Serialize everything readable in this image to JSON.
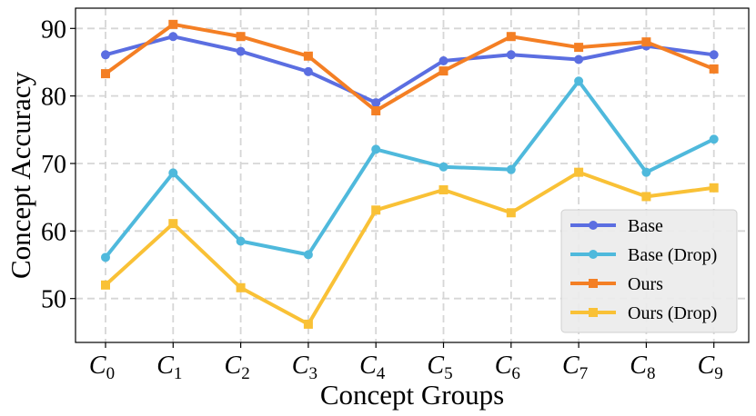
{
  "chart_data": {
    "type": "line",
    "title": "",
    "xlabel": "Concept Groups",
    "ylabel": "Concept Accuracy",
    "categories": [
      {
        "main": "C",
        "sub": "0"
      },
      {
        "main": "C",
        "sub": "1"
      },
      {
        "main": "C",
        "sub": "2"
      },
      {
        "main": "C",
        "sub": "3"
      },
      {
        "main": "C",
        "sub": "4"
      },
      {
        "main": "C",
        "sub": "5"
      },
      {
        "main": "C",
        "sub": "6"
      },
      {
        "main": "C",
        "sub": "7"
      },
      {
        "main": "C",
        "sub": "8"
      },
      {
        "main": "C",
        "sub": "9"
      }
    ],
    "yticks": [
      50,
      60,
      70,
      80,
      90
    ],
    "ylim": [
      43.5,
      93
    ],
    "grid": true,
    "legend_position": "bottom-right",
    "series": [
      {
        "name": "Base",
        "color": "#5b6ee1",
        "marker": "circle",
        "values": [
          86.1,
          88.8,
          86.6,
          83.6,
          79.0,
          85.2,
          86.1,
          85.4,
          87.4,
          86.1
        ]
      },
      {
        "name": "Base (Drop)",
        "color": "#4fb9dc",
        "marker": "circle",
        "values": [
          56.1,
          68.6,
          58.5,
          56.5,
          72.1,
          69.5,
          69.1,
          82.2,
          68.7,
          73.6
        ]
      },
      {
        "name": "Ours",
        "color": "#f47f24",
        "marker": "square",
        "values": [
          83.3,
          90.6,
          88.8,
          85.9,
          77.8,
          83.7,
          88.8,
          87.2,
          88.0,
          84.0
        ]
      },
      {
        "name": "Ours (Drop)",
        "color": "#f9c136",
        "marker": "square",
        "values": [
          52.0,
          61.1,
          51.6,
          46.2,
          63.1,
          66.1,
          62.7,
          68.7,
          65.1,
          66.4
        ]
      }
    ]
  }
}
